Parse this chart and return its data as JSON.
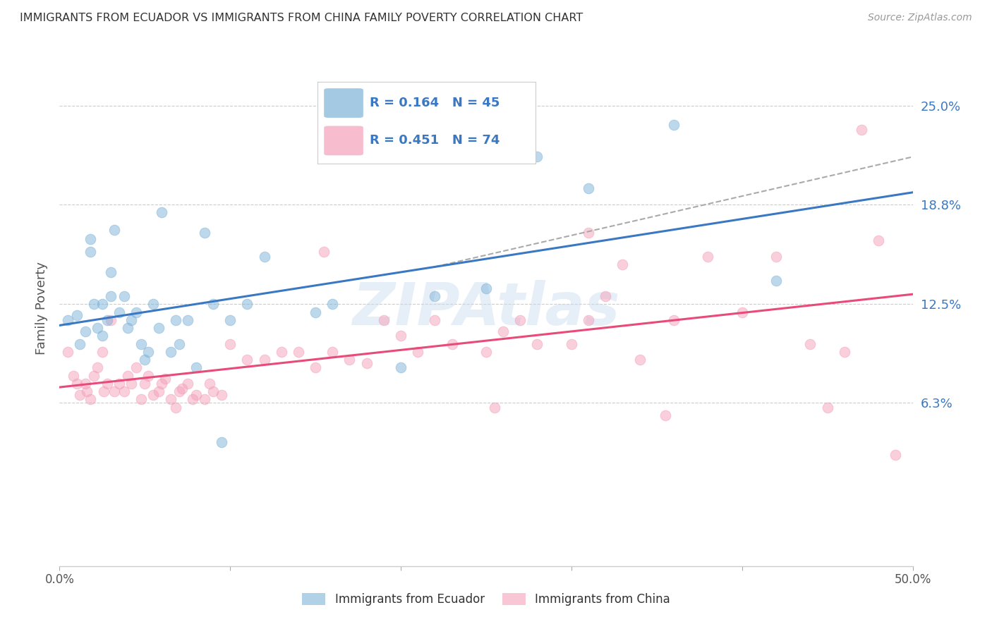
{
  "title": "IMMIGRANTS FROM ECUADOR VS IMMIGRANTS FROM CHINA FAMILY POVERTY CORRELATION CHART",
  "source": "Source: ZipAtlas.com",
  "ylabel": "Family Poverty",
  "xlim": [
    0.0,
    0.5
  ],
  "ylim": [
    -0.04,
    0.285
  ],
  "yticks": [
    0.063,
    0.125,
    0.188,
    0.25
  ],
  "ytick_labels": [
    "6.3%",
    "12.5%",
    "18.8%",
    "25.0%"
  ],
  "xticks": [
    0.0,
    0.1,
    0.2,
    0.3,
    0.4,
    0.5
  ],
  "xtick_labels": [
    "0.0%",
    "",
    "",
    "",
    "",
    "50.0%"
  ],
  "ecuador_color": "#7EB3D8",
  "china_color": "#F4A0BA",
  "ecuador_line_color": "#3B78C3",
  "china_line_color": "#E84B7A",
  "dash_color": "#AAAAAA",
  "ecuador_R": "0.164",
  "ecuador_N": "45",
  "china_R": "0.451",
  "china_N": "74",
  "rn_color": "#3B78C3",
  "ecuador_scatter_x": [
    0.005,
    0.01,
    0.012,
    0.015,
    0.018,
    0.018,
    0.02,
    0.022,
    0.025,
    0.025,
    0.028,
    0.03,
    0.03,
    0.032,
    0.035,
    0.038,
    0.04,
    0.042,
    0.045,
    0.048,
    0.05,
    0.052,
    0.055,
    0.058,
    0.06,
    0.065,
    0.068,
    0.07,
    0.075,
    0.08,
    0.085,
    0.09,
    0.095,
    0.1,
    0.11,
    0.12,
    0.15,
    0.16,
    0.2,
    0.22,
    0.25,
    0.28,
    0.31,
    0.36,
    0.42
  ],
  "ecuador_scatter_y": [
    0.115,
    0.118,
    0.1,
    0.108,
    0.158,
    0.166,
    0.125,
    0.11,
    0.125,
    0.105,
    0.115,
    0.145,
    0.13,
    0.172,
    0.12,
    0.13,
    0.11,
    0.115,
    0.12,
    0.1,
    0.09,
    0.095,
    0.125,
    0.11,
    0.183,
    0.095,
    0.115,
    0.1,
    0.115,
    0.085,
    0.17,
    0.125,
    0.038,
    0.115,
    0.125,
    0.155,
    0.12,
    0.125,
    0.085,
    0.13,
    0.135,
    0.218,
    0.198,
    0.238,
    0.14
  ],
  "china_scatter_x": [
    0.005,
    0.008,
    0.01,
    0.012,
    0.015,
    0.016,
    0.018,
    0.02,
    0.022,
    0.025,
    0.026,
    0.028,
    0.03,
    0.032,
    0.035,
    0.038,
    0.04,
    0.042,
    0.045,
    0.048,
    0.05,
    0.052,
    0.055,
    0.058,
    0.06,
    0.062,
    0.065,
    0.068,
    0.07,
    0.072,
    0.075,
    0.078,
    0.08,
    0.085,
    0.088,
    0.09,
    0.095,
    0.1,
    0.11,
    0.12,
    0.13,
    0.14,
    0.15,
    0.155,
    0.16,
    0.17,
    0.18,
    0.19,
    0.2,
    0.21,
    0.22,
    0.23,
    0.25,
    0.255,
    0.26,
    0.27,
    0.28,
    0.3,
    0.31,
    0.32,
    0.34,
    0.355,
    0.36,
    0.38,
    0.4,
    0.42,
    0.44,
    0.46,
    0.48,
    0.49,
    0.31,
    0.33,
    0.45,
    0.47
  ],
  "china_scatter_y": [
    0.095,
    0.08,
    0.075,
    0.068,
    0.075,
    0.07,
    0.065,
    0.08,
    0.085,
    0.095,
    0.07,
    0.075,
    0.115,
    0.07,
    0.075,
    0.07,
    0.08,
    0.075,
    0.085,
    0.065,
    0.075,
    0.08,
    0.068,
    0.07,
    0.075,
    0.078,
    0.065,
    0.06,
    0.07,
    0.072,
    0.075,
    0.065,
    0.068,
    0.065,
    0.075,
    0.07,
    0.068,
    0.1,
    0.09,
    0.09,
    0.095,
    0.095,
    0.085,
    0.158,
    0.095,
    0.09,
    0.088,
    0.115,
    0.105,
    0.095,
    0.115,
    0.1,
    0.095,
    0.06,
    0.108,
    0.115,
    0.1,
    0.1,
    0.115,
    0.13,
    0.09,
    0.055,
    0.115,
    0.155,
    0.12,
    0.155,
    0.1,
    0.095,
    0.165,
    0.03,
    0.17,
    0.15,
    0.06,
    0.235
  ]
}
